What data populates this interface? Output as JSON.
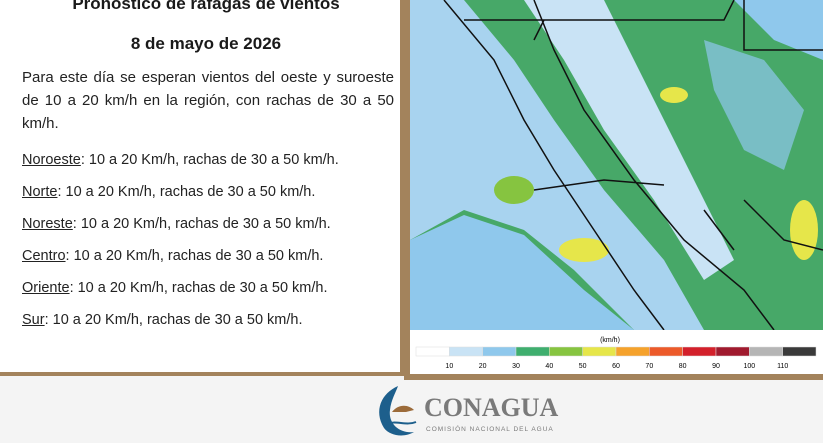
{
  "header": {
    "title": "Pronóstico de ráfagas de vientos",
    "date": "8 de mayo de 2026"
  },
  "intro": "Para este día se esperan vientos del oeste y suroeste de 10 a 20 km/h en la región, con rachas de 30 a 50 km/h.",
  "regions": [
    {
      "name": "Noroeste",
      "text": ":  10 a 20 Km/h, rachas de 30 a 50 km/h."
    },
    {
      "name": "Norte",
      "text": ": 10 a 20 Km/h, rachas de 30 a 50 km/h."
    },
    {
      "name": "Noreste",
      "text": ": 10 a 20 Km/h, rachas de 30 a 50 km/h."
    },
    {
      "name": "Centro",
      "text": ":  10 a 20 Km/h, rachas de 30 a 50 km/h."
    },
    {
      "name": "Oriente",
      "text": ":  10 a 20 Km/h, rachas de 30 a 50 km/h."
    },
    {
      "name": "Sur",
      "text": ":  10 a 20 Km/h, rachas de 30 a 50 km/h."
    }
  ],
  "map_legend": {
    "unit": "(km/h)",
    "colors": [
      "#ffffff",
      "#c9e3f5",
      "#8fc8ec",
      "#3fae6e",
      "#86c440",
      "#e6e64a",
      "#f5a22c",
      "#ec5a2a",
      "#d3202b",
      "#a01a2e",
      "#b5b5b5",
      "#3a3a3a"
    ],
    "labels": [
      "10",
      "20",
      "30",
      "40",
      "50",
      "60",
      "70",
      "80",
      "90",
      "100",
      "110"
    ]
  },
  "logo": {
    "name": "CONAGUA",
    "subtitle": "COMISIÓN NACIONAL DEL AGUA"
  }
}
